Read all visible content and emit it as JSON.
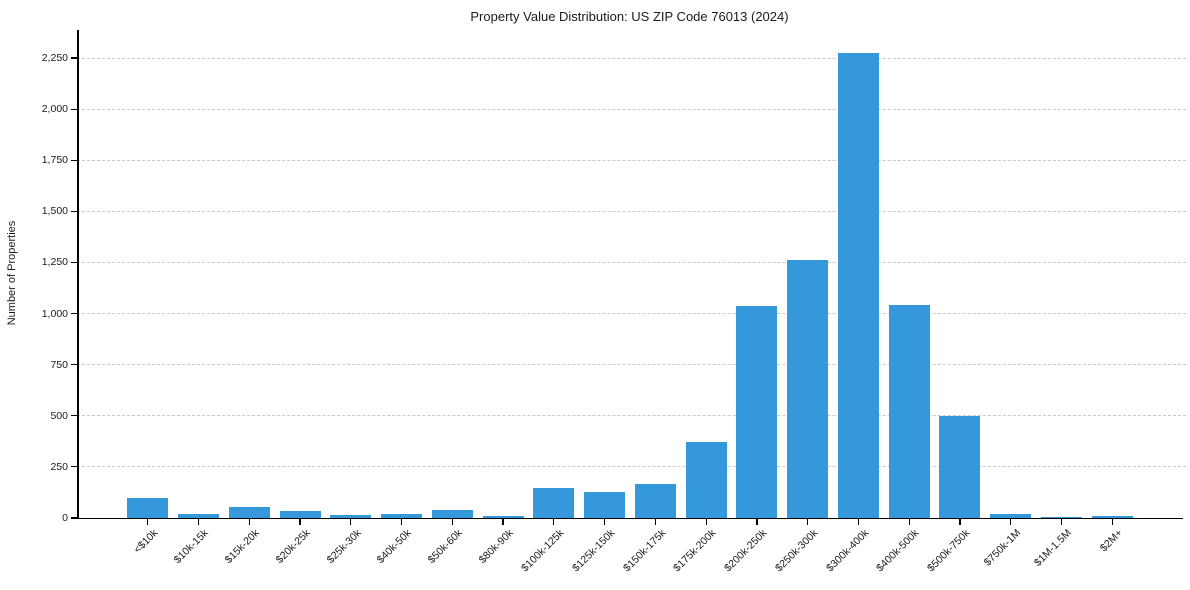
{
  "chart_data": {
    "type": "bar",
    "title": "Property Value Distribution: US ZIP Code 76013 (2024)",
    "xlabel": "",
    "ylabel": "Number of Properties",
    "categories": [
      "<$10k",
      "$10k-15k",
      "$15k-20k",
      "$20k-25k",
      "$25k-30k",
      "$40k-50k",
      "$50k-60k",
      "$80k-90k",
      "$100k-125k",
      "$125k-150k",
      "$150k-175k",
      "$175k-200k",
      "$200k-250k",
      "$250k-300k",
      "$300k-400k",
      "$400k-500k",
      "$500k-750k",
      "$750k-1M",
      "$1M-1.5M",
      "$2M+"
    ],
    "values": [
      100,
      20,
      52,
      32,
      13,
      18,
      40,
      12,
      145,
      128,
      165,
      370,
      1035,
      1260,
      2275,
      1040,
      500,
      20,
      5,
      10
    ],
    "yticks": [
      0,
      250,
      500,
      750,
      1000,
      1250,
      1500,
      1750,
      2000,
      2250
    ],
    "ytick_labels": [
      "0",
      "250",
      "500",
      "750",
      "1,000",
      "1,250",
      "1,500",
      "1,750",
      "2,000",
      "2,250"
    ],
    "ylim": [
      0,
      2387
    ],
    "grid": "horizontal-dashed",
    "legend": "none",
    "bar_color": "#3498db",
    "grid_color": "#c9c9c9",
    "axis_color": "#000000",
    "text_color": "#1a1a1a"
  }
}
